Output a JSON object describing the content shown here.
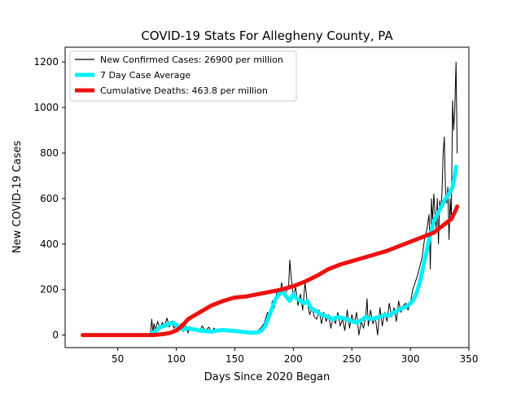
{
  "chart_data": {
    "type": "line",
    "title": "COVID-19 Stats For Allegheny County, PA",
    "xlabel": "Days Since 2020 Began",
    "ylabel": "New COVID-19 Cases",
    "xlim": [
      5,
      350
    ],
    "ylim": [
      -55,
      1265
    ],
    "xticks": [
      50,
      100,
      150,
      200,
      250,
      300,
      350
    ],
    "yticks": [
      0,
      200,
      400,
      600,
      800,
      1000,
      1200
    ],
    "grid": false,
    "legend_position": "top-left",
    "series": [
      {
        "name": "New Confirmed Cases: 26900 per million",
        "color": "#000000",
        "x": [
          20,
          40,
          60,
          75,
          78,
          79,
          80,
          81,
          82,
          84,
          86,
          88,
          90,
          92,
          94,
          96,
          98,
          100,
          102,
          104,
          106,
          108,
          110,
          112,
          115,
          118,
          120,
          122,
          125,
          128,
          130,
          132,
          135,
          138,
          140,
          145,
          150,
          155,
          160,
          165,
          170,
          172,
          175,
          178,
          180,
          182,
          184,
          186,
          188,
          190,
          192,
          194,
          196,
          197,
          198,
          200,
          202,
          204,
          206,
          208,
          210,
          212,
          214,
          216,
          218,
          220,
          222,
          224,
          226,
          228,
          230,
          232,
          234,
          236,
          238,
          240,
          242,
          244,
          246,
          248,
          250,
          252,
          254,
          256,
          258,
          260,
          262,
          263,
          264,
          266,
          268,
          270,
          272,
          274,
          276,
          278,
          280,
          282,
          284,
          286,
          288,
          290,
          292,
          294,
          296,
          298,
          300,
          302,
          304,
          306,
          308,
          310,
          312,
          314,
          316,
          317,
          318,
          319,
          320,
          321,
          322,
          323,
          324,
          325,
          326,
          327,
          328,
          329,
          330,
          331,
          332,
          333,
          334,
          335,
          336,
          337,
          338,
          339,
          340
        ],
        "y": [
          0,
          0,
          0,
          0,
          10,
          70,
          15,
          50,
          20,
          60,
          30,
          55,
          40,
          75,
          35,
          60,
          30,
          40,
          20,
          50,
          15,
          40,
          10,
          35,
          25,
          30,
          15,
          40,
          20,
          35,
          10,
          30,
          20,
          25,
          15,
          20,
          15,
          15,
          10,
          15,
          20,
          30,
          50,
          100,
          80,
          150,
          120,
          200,
          170,
          230,
          180,
          190,
          220,
          330,
          260,
          170,
          210,
          130,
          180,
          110,
          230,
          140,
          90,
          120,
          80,
          70,
          110,
          50,
          100,
          60,
          90,
          30,
          80,
          50,
          100,
          40,
          70,
          20,
          110,
          30,
          90,
          50,
          100,
          0,
          60,
          30,
          90,
          160,
          40,
          110,
          50,
          80,
          0,
          120,
          40,
          100,
          60,
          140,
          80,
          120,
          60,
          150,
          100,
          130,
          140,
          110,
          140,
          200,
          230,
          260,
          300,
          340,
          420,
          460,
          530,
          290,
          600,
          500,
          620,
          540,
          470,
          600,
          400,
          590,
          550,
          620,
          800,
          870,
          640,
          580,
          650,
          420,
          600,
          500,
          1030,
          900,
          1000,
          1200,
          800
        ]
      },
      {
        "name": "7 Day Case Average",
        "color": "#00f0f8",
        "x": [
          78,
          82,
          86,
          90,
          94,
          97,
          100,
          103,
          106,
          110,
          115,
          120,
          125,
          130,
          135,
          140,
          145,
          150,
          155,
          160,
          165,
          170,
          173,
          176,
          179,
          182,
          185,
          188,
          191,
          194,
          197,
          200,
          203,
          206,
          209,
          212,
          215,
          218,
          221,
          224,
          227,
          230,
          234,
          238,
          242,
          246,
          250,
          254,
          258,
          262,
          266,
          270,
          274,
          278,
          282,
          286,
          290,
          294,
          298,
          302,
          305,
          308,
          311,
          314,
          316,
          318,
          320,
          322,
          324,
          326,
          328,
          330,
          332,
          334,
          336,
          338,
          339
        ],
        "y": [
          5,
          15,
          35,
          40,
          50,
          55,
          45,
          30,
          25,
          30,
          25,
          20,
          18,
          15,
          20,
          22,
          20,
          18,
          15,
          12,
          10,
          12,
          20,
          40,
          80,
          120,
          160,
          180,
          190,
          170,
          150,
          180,
          160,
          150,
          140,
          150,
          120,
          110,
          100,
          90,
          85,
          80,
          70,
          80,
          75,
          70,
          60,
          55,
          65,
          80,
          70,
          75,
          80,
          90,
          85,
          100,
          110,
          120,
          130,
          150,
          180,
          230,
          300,
          370,
          420,
          460,
          500,
          520,
          540,
          560,
          580,
          600,
          610,
          630,
          650,
          700,
          740
        ]
      },
      {
        "name": "Cumulative Deaths: 463.8 per million",
        "color": "#ee1111",
        "x": [
          20,
          40,
          60,
          80,
          90,
          95,
          100,
          105,
          110,
          115,
          120,
          125,
          130,
          135,
          140,
          145,
          150,
          160,
          170,
          180,
          190,
          200,
          210,
          220,
          230,
          240,
          250,
          260,
          270,
          280,
          290,
          300,
          305,
          310,
          315,
          320,
          325,
          330,
          335,
          338,
          340
        ],
        "y": [
          0,
          0,
          0,
          0,
          5,
          10,
          20,
          40,
          70,
          85,
          100,
          115,
          130,
          140,
          150,
          158,
          165,
          170,
          180,
          190,
          200,
          215,
          235,
          260,
          290,
          310,
          325,
          340,
          355,
          370,
          390,
          410,
          420,
          430,
          440,
          450,
          470,
          490,
          510,
          540,
          565
        ]
      }
    ]
  }
}
